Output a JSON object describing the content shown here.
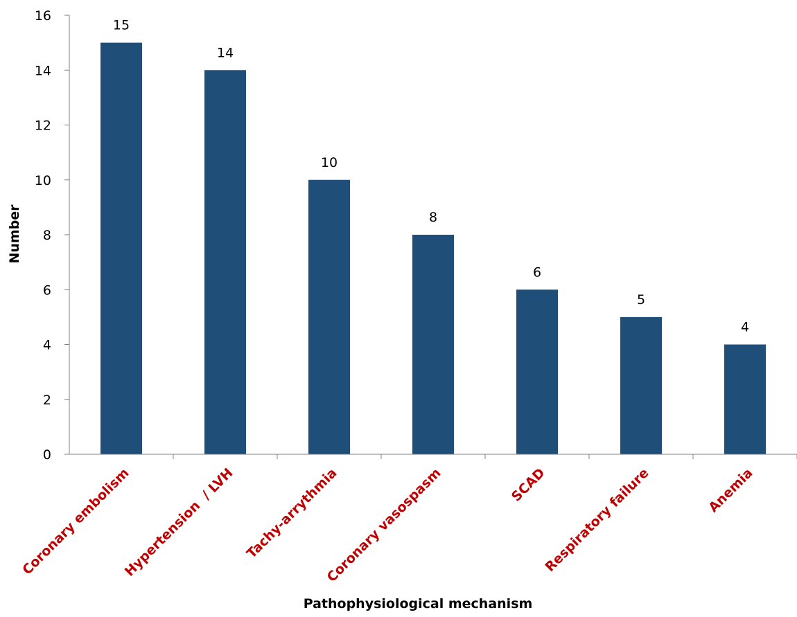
{
  "chart_data": {
    "type": "bar",
    "categories": [
      "Coronary embolism",
      "Hypertension  / LVH",
      "Tachy-arrythmia",
      "Coronary vasospasm",
      "SCAD",
      "Respiratory failure",
      "Anemia"
    ],
    "values": [
      15,
      14,
      10,
      8,
      6,
      5,
      4
    ],
    "data_labels": [
      "15",
      "14",
      "10",
      "8",
      "6",
      "5",
      "4"
    ],
    "xlabel": "Pathophysiological mechanism",
    "ylabel": "Number",
    "ylim": [
      0,
      16
    ],
    "yticks": [
      0,
      2,
      4,
      6,
      8,
      10,
      12,
      14,
      16
    ],
    "ytick_labels": [
      "0",
      "2",
      "4",
      "6",
      "8",
      "10",
      "12",
      "14",
      "16"
    ],
    "grid": false,
    "legend": "none",
    "bar_color": "#1f4e79",
    "category_label_color": "#c00000",
    "axis_color": "#808080"
  }
}
